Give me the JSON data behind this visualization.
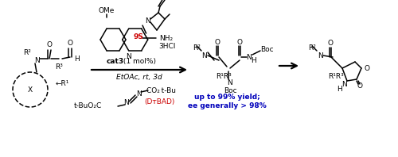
{
  "background_color": "#ffffff",
  "fig_width": 5.0,
  "fig_height": 1.98,
  "dpi": 100,
  "colors": {
    "black": "#000000",
    "red": "#cc0000",
    "blue": "#0000bb",
    "gray": "#888888"
  },
  "texts": {
    "cat3": "cat3",
    "cat3_rest": " (1 mol%)",
    "conditions": "EtOAc, rt, 3d",
    "ome": "OMe",
    "nh2": "NH₂",
    "hcl": "3HCl",
    "nine_s": "9S",
    "boc": "Boc",
    "n": "N",
    "h": "H",
    "x": "X",
    "r1": "R¹",
    "r2": "R²",
    "r3": "R³",
    "r1r3": "R¹R³",
    "o": "O",
    "arrow_r1": "←R¹",
    "co2tbu": "CO₂ t-Bu",
    "tbuoc": "t-BuO₂C",
    "dtbad": "(DᴛBAD)",
    "yield": "up to 99% yield;",
    "ee": "ee generally > 98%"
  }
}
